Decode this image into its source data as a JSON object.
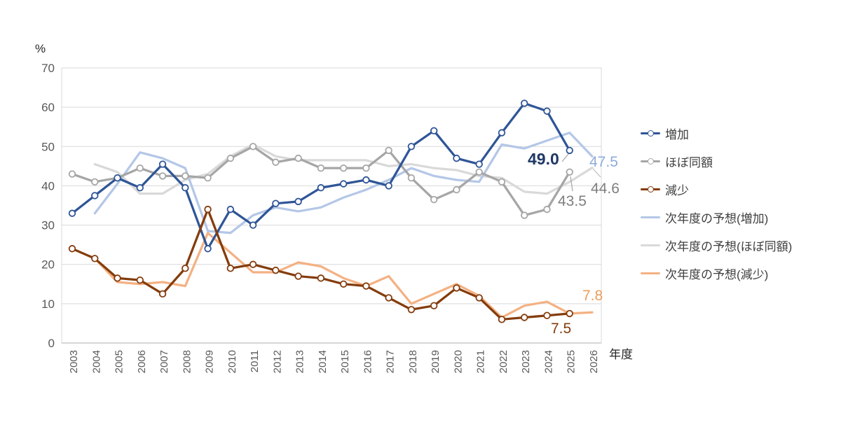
{
  "page": {
    "y_axis_unit": "%",
    "x_axis_title": "年度"
  },
  "chart_data": {
    "type": "line",
    "title": "",
    "xlabel": "年度",
    "ylabel": "%",
    "ylim": [
      0,
      70
    ],
    "y_ticks": [
      0,
      10,
      20,
      30,
      40,
      50,
      60,
      70
    ],
    "grid": "horizontal",
    "legend_position": "right",
    "years": [
      2003,
      2004,
      2005,
      2006,
      2007,
      2008,
      2009,
      2010,
      2011,
      2012,
      2013,
      2014,
      2015,
      2016,
      2017,
      2018,
      2019,
      2020,
      2021,
      2022,
      2023,
      2024,
      2025,
      2026
    ],
    "colors": {
      "grid": "#d9d9d9",
      "axis": "#bfbfbf",
      "tick_text": "#595959",
      "legend_text": "#3f3f3f"
    },
    "series": [
      {
        "name": "増加",
        "color": "#2f5597",
        "marker": true,
        "start_year": 2003,
        "values": [
          33,
          37.5,
          42,
          39.5,
          45.5,
          39.5,
          24,
          34,
          30,
          35.5,
          36,
          39.5,
          40.5,
          41.5,
          40,
          50,
          54,
          47,
          45.5,
          53.5,
          61,
          59,
          49.0
        ]
      },
      {
        "name": "ほぼ同額",
        "color": "#a6a6a6",
        "marker": true,
        "start_year": 2003,
        "values": [
          43,
          41,
          42,
          44.5,
          42.5,
          42.5,
          42,
          47,
          50,
          46,
          47,
          44.5,
          44.5,
          44.5,
          49,
          42,
          36.5,
          39,
          43.5,
          41,
          32.5,
          34,
          43.5
        ]
      },
      {
        "name": "減少",
        "color": "#843c0c",
        "marker": true,
        "start_year": 2003,
        "values": [
          24,
          21.5,
          16.5,
          16,
          12.5,
          19,
          34,
          19,
          20,
          18.5,
          17,
          16.5,
          15,
          14.5,
          11.5,
          8.5,
          9.5,
          14,
          11.5,
          6,
          6.5,
          7,
          7.5
        ]
      },
      {
        "name": "次年度の予想(増加)",
        "color": "#b4c7e7",
        "marker": false,
        "start_year": 2004,
        "values": [
          33,
          40.5,
          48.5,
          47,
          44.5,
          28.5,
          28,
          32.5,
          34.5,
          33.5,
          34.5,
          37,
          39,
          41.5,
          44.5,
          42.5,
          41.5,
          41,
          50.5,
          49.5,
          51.5,
          53.5,
          47.5
        ]
      },
      {
        "name": "次年度の予想(ほぼ同額)",
        "color": "#d9d9d9",
        "marker": false,
        "start_year": 2004,
        "values": [
          45.5,
          43.5,
          38,
          38,
          41.5,
          43,
          47.5,
          50.5,
          47.5,
          46.5,
          46.5,
          46.5,
          46.5,
          45,
          45.5,
          44.5,
          44,
          42.5,
          42,
          38.5,
          38,
          41,
          44.6
        ]
      },
      {
        "name": "次年度の予想(減少)",
        "color": "#f4b183",
        "marker": false,
        "start_year": 2004,
        "values": [
          21.5,
          15.5,
          15,
          15.5,
          14.5,
          28,
          23,
          18,
          18,
          20.5,
          19.5,
          16.5,
          14.5,
          17,
          10,
          12.5,
          15,
          12,
          6.5,
          9.5,
          10.5,
          7.5,
          7.8
        ]
      }
    ],
    "annotations": [
      {
        "text": "49.0",
        "value": 49.0,
        "series": "増加",
        "year": 2025,
        "color": "#1f3864"
      },
      {
        "text": "47.5",
        "value": 47.5,
        "series": "次年度の予想(増加)",
        "year": 2026,
        "color": "#8faadc"
      },
      {
        "text": "44.6",
        "value": 44.6,
        "series": "次年度の予想(ほぼ同額)",
        "year": 2026,
        "color": "#7f7f7f"
      },
      {
        "text": "43.5",
        "value": 43.5,
        "series": "ほぼ同額",
        "year": 2025,
        "color": "#7f7f7f"
      },
      {
        "text": "7.5",
        "value": 7.5,
        "series": "減少",
        "year": 2025,
        "color": "#843c0c"
      },
      {
        "text": "7.8",
        "value": 7.8,
        "series": "次年度の予想(減少)",
        "year": 2026,
        "color": "#ed9d5c"
      }
    ]
  }
}
